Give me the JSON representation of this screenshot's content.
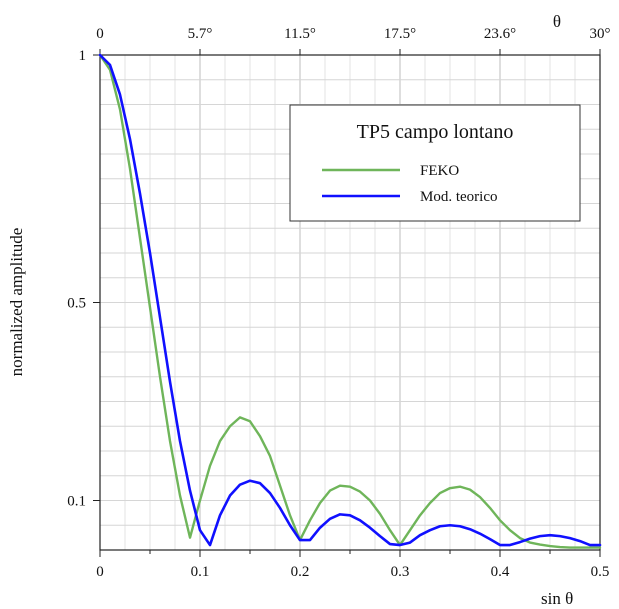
{
  "chart_data": {
    "type": "line",
    "title": "",
    "xlabel": "sin θ",
    "ylabel": "normalized amplitude",
    "top_axis_label": "θ",
    "xlim": [
      0,
      0.5
    ],
    "ylim": [
      0,
      1
    ],
    "x_ticks": [
      "0",
      "0.1",
      "0.2",
      "0.3",
      "0.4",
      "0.5"
    ],
    "top_ticks": [
      "0",
      "5.7°",
      "11.5°",
      "17.5°",
      "23.6°",
      "30°"
    ],
    "y_ticks": [
      {
        "value": 1,
        "label": "1"
      },
      {
        "value": 0.5,
        "label": "0.5"
      },
      {
        "value": 0.1,
        "label": "0.1"
      }
    ],
    "grid": true,
    "legend": {
      "title": "TP5 campo lontano",
      "placement": "top-right"
    },
    "series": [
      {
        "name": "FEKO",
        "color": "#6fb55a",
        "x": [
          0,
          0.01,
          0.02,
          0.03,
          0.04,
          0.05,
          0.06,
          0.07,
          0.08,
          0.09,
          0.1,
          0.11,
          0.12,
          0.13,
          0.14,
          0.15,
          0.16,
          0.17,
          0.18,
          0.19,
          0.2,
          0.21,
          0.22,
          0.23,
          0.24,
          0.25,
          0.26,
          0.27,
          0.28,
          0.29,
          0.3,
          0.31,
          0.32,
          0.33,
          0.34,
          0.35,
          0.36,
          0.37,
          0.38,
          0.39,
          0.4,
          0.41,
          0.42,
          0.43,
          0.44,
          0.45,
          0.46,
          0.47,
          0.48,
          0.49,
          0.5
        ],
        "values": [
          1.0,
          0.97,
          0.89,
          0.77,
          0.63,
          0.49,
          0.35,
          0.22,
          0.11,
          0.025,
          0.1,
          0.17,
          0.22,
          0.25,
          0.268,
          0.26,
          0.23,
          0.19,
          0.13,
          0.07,
          0.02,
          0.06,
          0.095,
          0.12,
          0.13,
          0.128,
          0.118,
          0.1,
          0.073,
          0.04,
          0.01,
          0.04,
          0.07,
          0.095,
          0.115,
          0.125,
          0.128,
          0.122,
          0.107,
          0.085,
          0.06,
          0.04,
          0.024,
          0.015,
          0.011,
          0.008,
          0.006,
          0.005,
          0.005,
          0.005,
          0.005
        ]
      },
      {
        "name": "Mod. teorico",
        "color": "#1010ff",
        "x": [
          0,
          0.01,
          0.02,
          0.03,
          0.04,
          0.05,
          0.06,
          0.07,
          0.08,
          0.09,
          0.1,
          0.11,
          0.12,
          0.13,
          0.14,
          0.15,
          0.16,
          0.17,
          0.18,
          0.19,
          0.2,
          0.21,
          0.22,
          0.23,
          0.24,
          0.25,
          0.26,
          0.27,
          0.28,
          0.29,
          0.3,
          0.31,
          0.32,
          0.33,
          0.34,
          0.35,
          0.36,
          0.37,
          0.38,
          0.39,
          0.4,
          0.41,
          0.42,
          0.43,
          0.44,
          0.45,
          0.46,
          0.47,
          0.48,
          0.49,
          0.5
        ],
        "values": [
          1.0,
          0.98,
          0.92,
          0.83,
          0.72,
          0.6,
          0.47,
          0.34,
          0.22,
          0.12,
          0.04,
          0.01,
          0.07,
          0.11,
          0.132,
          0.14,
          0.135,
          0.115,
          0.085,
          0.05,
          0.02,
          0.02,
          0.045,
          0.063,
          0.072,
          0.07,
          0.06,
          0.045,
          0.028,
          0.012,
          0.01,
          0.015,
          0.03,
          0.04,
          0.048,
          0.05,
          0.048,
          0.042,
          0.033,
          0.022,
          0.01,
          0.01,
          0.016,
          0.023,
          0.028,
          0.03,
          0.028,
          0.024,
          0.018,
          0.01,
          0.01
        ]
      }
    ]
  }
}
